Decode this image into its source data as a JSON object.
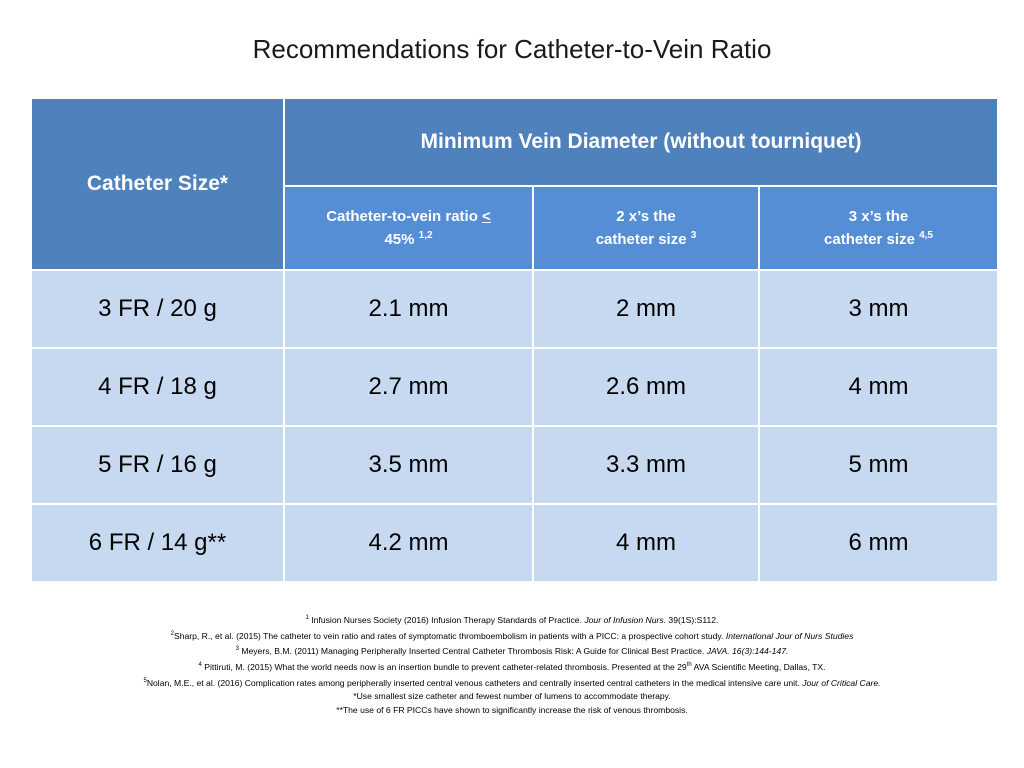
{
  "title": "Recommendations for Catheter-to-Vein Ratio",
  "table": {
    "header_catheter": "Catheter Size*",
    "header_vein": "Minimum Vein Diameter (without tourniquet)",
    "sub1_a": "Catheter-to-vein ratio ",
    "sub1_lt": "<",
    "sub1_b": "45% ",
    "sub1_sup": "1,2",
    "sub2_a": "2 x’s the",
    "sub2_b": "catheter size ",
    "sub2_sup": "3",
    "sub3_a": "3 x’s the",
    "sub3_b": "catheter size ",
    "sub3_sup": "4,5",
    "rows": [
      [
        "3 FR / 20 g",
        "2.1 mm",
        "2 mm",
        "3 mm"
      ],
      [
        "4 FR / 18 g",
        "2.7 mm",
        "2.6 mm",
        "4 mm"
      ],
      [
        "5 FR / 16 g",
        "3.5 mm",
        "3.3 mm",
        "5 mm"
      ],
      [
        "6 FR / 14 g**",
        "4.2 mm",
        "4 mm",
        "6 mm"
      ]
    ]
  },
  "references": {
    "r1_sup": "1",
    "r1_text": " Infusion Nurses Society (2016) Infusion Therapy Standards of Practice.  ",
    "r1_ital": "Jour of Infusion Nurs.",
    "r1_tail": " 39(1S):S112.",
    "r2_sup": "2",
    "r2_text": "Sharp, R., et al.  (2015) The catheter to vein ratio and rates of symptomatic thromboembolism in patients with a PICC: a prospective cohort study.  ",
    "r2_ital": "International Jour of Nurs Studies",
    "r3_sup": "3",
    "r3_text": " Meyers, B.M. (2011)  Managing Peripherally Inserted Central Catheter Thrombosis Risk: A Guide for Clinical Best Practice. ",
    "r3_ital": "JAVA. 16(3):144-147.",
    "r4_sup": "4",
    "r4_text": " Pittiruti, M. (2015) What the world needs now is an insertion bundle to prevent catheter-related thrombosis.  Presented at the 29",
    "r4_th": "th",
    "r4_tail": " AVA Scientific Meeting, Dallas, TX.",
    "r5_sup": "5",
    "r5_text": "Nolan, M.E., et al.  (2016) Complication rates among peripherally inserted central venous catheters and centrally inserted central catheters in the medical intensive care unit.  ",
    "r5_ital": "Jour of Critical Care.",
    "note1": "*Use smallest size catheter and fewest number of lumens to accommodate therapy.",
    "note2": "**The use of 6 FR PICCs have shown to significantly increase the risk of venous thrombosis."
  }
}
